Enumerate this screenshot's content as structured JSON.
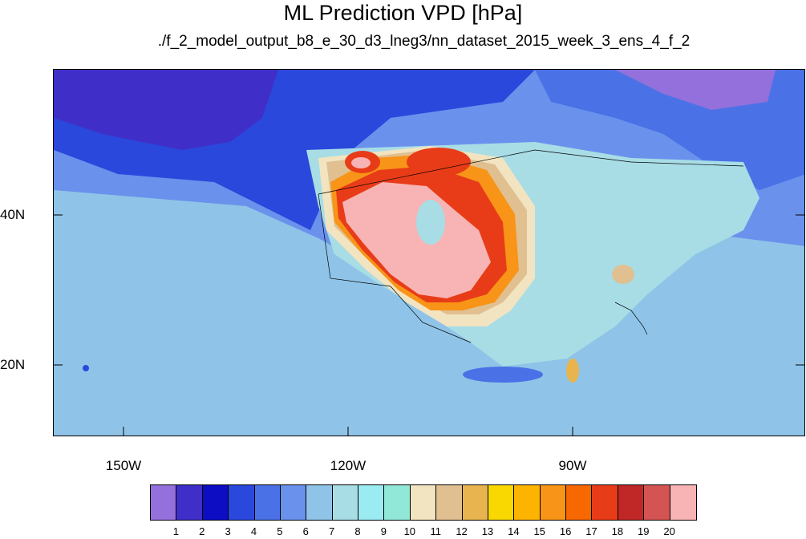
{
  "title": "ML Prediction VPD [hPa]",
  "subtitle": "./f_2_model_output_b8_e_30_d3_lneg3/nn_dataset_2015_week_3_ens_4_f_2",
  "lat_labels": [
    "40N",
    "20N"
  ],
  "lon_labels": [
    "150W",
    "120W",
    "90W"
  ],
  "colorbar": {
    "labels": [
      "1",
      "2",
      "3",
      "4",
      "5",
      "6",
      "7",
      "8",
      "9",
      "10",
      "11",
      "12",
      "13",
      "14",
      "15",
      "16",
      "17",
      "18",
      "19",
      "20"
    ],
    "colors": [
      "#9370db",
      "#3f2fc8",
      "#0d0dc4",
      "#2a48dc",
      "#4a72e6",
      "#6a92ec",
      "#8fc4e8",
      "#a8dde6",
      "#9aecf2",
      "#92e8d8",
      "#f2e4c0",
      "#e0c090",
      "#e8b450",
      "#f8d800",
      "#fdb400",
      "#f89418",
      "#f86800",
      "#e83c18",
      "#c02828",
      "#d45454",
      "#f8b4b4"
    ]
  },
  "map": {
    "projection": "lat-lon",
    "lon_range": [
      -160,
      -62
    ],
    "lat_range": [
      11,
      58
    ],
    "colors": {
      "ocean_far": "#8fc4e8",
      "ocean_mid": "#6a92ec",
      "ocean_dark": "#2a48dc",
      "ocean_deep": "#3f2fc8",
      "land_low": "#a8dde6",
      "land_cool": "#4a72e6",
      "hot_peak": "#f8b4b4",
      "hot_high": "#d45454",
      "hot_red": "#e83c18",
      "hot_orange": "#f89418",
      "hot_yellow": "#fdb400",
      "warm_tan": "#e0c090",
      "warm_beige": "#f2e4c0"
    }
  }
}
